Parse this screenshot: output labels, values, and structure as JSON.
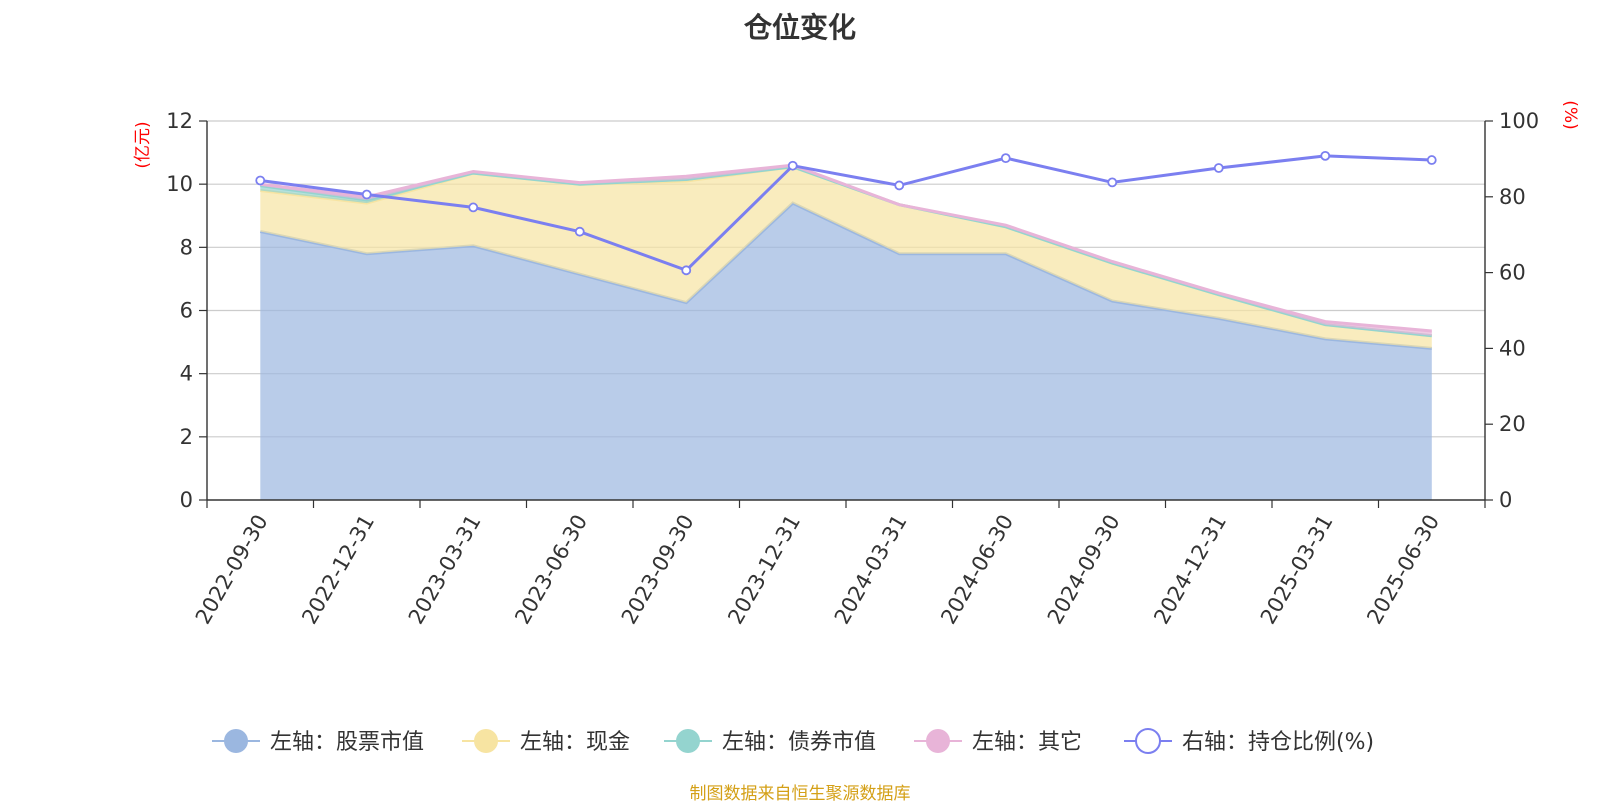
{
  "chart_data": {
    "type": "area",
    "title": "仓位变化",
    "x": [
      "2022-09-30",
      "2022-12-31",
      "2023-03-31",
      "2023-06-30",
      "2023-09-30",
      "2023-12-31",
      "2024-03-31",
      "2024-06-30",
      "2024-09-30",
      "2024-12-31",
      "2025-03-31",
      "2025-06-30"
    ],
    "left_axis": {
      "unit": "(亿元)",
      "ylim": [
        0,
        12
      ],
      "ticks": [
        "0",
        "2",
        "4",
        "6",
        "8",
        "10",
        "12"
      ]
    },
    "right_axis": {
      "unit": "(%)",
      "ylim": [
        0,
        100
      ],
      "ticks": [
        "0",
        "20",
        "40",
        "60",
        "80",
        "100"
      ]
    },
    "stacked": true,
    "series": [
      {
        "name": "左轴：股票市值",
        "axis": "left",
        "type": "area",
        "color": "#9bb7e0",
        "values": [
          8.5,
          7.8,
          8.05,
          7.15,
          6.25,
          9.4,
          7.8,
          7.8,
          6.3,
          5.75,
          5.1,
          4.8
        ]
      },
      {
        "name": "左轴：现金",
        "axis": "left",
        "type": "area",
        "color": "#f7e4a2",
        "values": [
          1.3,
          1.6,
          2.3,
          2.85,
          3.85,
          1.15,
          1.55,
          0.85,
          1.2,
          0.75,
          0.45,
          0.4
        ]
      },
      {
        "name": "左轴：债券市值",
        "axis": "left",
        "type": "area",
        "color": "#94d4cf",
        "values": [
          0.15,
          0.1,
          0,
          0,
          0.05,
          0,
          0,
          0,
          0,
          0,
          0,
          0
        ]
      },
      {
        "name": "左轴：其它",
        "axis": "left",
        "type": "area",
        "color": "#e8b4d8",
        "values": [
          0.05,
          0.1,
          0.05,
          0.05,
          0.1,
          0.05,
          0.0,
          0.05,
          0.05,
          0.05,
          0.1,
          0.15
        ]
      },
      {
        "name": "右轴：持仓比例(%)",
        "axis": "right",
        "type": "line",
        "color": "#7b7ff0",
        "values": [
          84.3,
          80.6,
          77.2,
          70.8,
          60.6,
          88.2,
          83.0,
          90.2,
          83.8,
          87.6,
          90.8,
          89.7
        ]
      }
    ],
    "grid": true,
    "legend_position": "bottom"
  },
  "source_note": "制图数据来自恒生聚源数据库"
}
